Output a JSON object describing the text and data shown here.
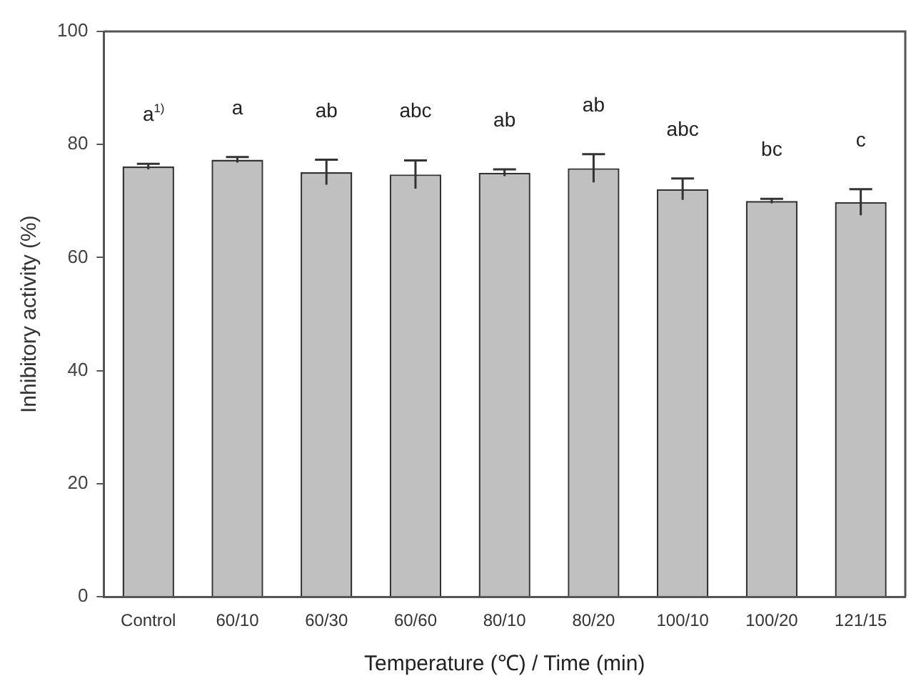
{
  "chart_data": {
    "type": "bar",
    "xlabel": "Temperature (℃) / Time (min)",
    "ylabel": "Inhibitory activity (%)",
    "categories": [
      "Control",
      "60/10",
      "60/30",
      "60/60",
      "80/10",
      "80/20",
      "100/10",
      "100/20",
      "121/15"
    ],
    "values": [
      76.1,
      77.3,
      75.1,
      74.7,
      75.0,
      75.8,
      72.1,
      70.0,
      69.8
    ],
    "errors": [
      0.5,
      0.5,
      2.2,
      2.5,
      0.6,
      2.5,
      1.9,
      0.4,
      2.3
    ],
    "color": "#c0c0c0",
    "ylim": [
      0,
      100
    ],
    "yticks": [
      0,
      20,
      40,
      60,
      80,
      100
    ],
    "grid": false,
    "legend": false,
    "annotations": [
      "a$^{1)}$",
      "a",
      "ab",
      "abc",
      "ab",
      "ab",
      "abc",
      "bc",
      "c"
    ]
  }
}
